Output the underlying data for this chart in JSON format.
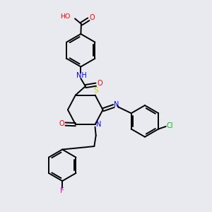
{
  "bg_color": "#e8eaf0",
  "atom_colors": {
    "O": "#ff0000",
    "N": "#0000ff",
    "S": "#cccc00",
    "F": "#ff00cc",
    "Cl": "#00bb00",
    "C": "#000000"
  },
  "lw": 1.4
}
